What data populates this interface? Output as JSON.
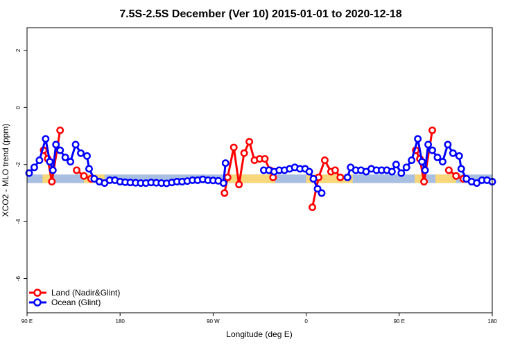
{
  "chart_data": {
    "type": "line",
    "title": "7.5S-2.5S December (Ver 10)   2015-01-01 to 2020-12-18",
    "xlabel": "Longitude (deg E)",
    "ylabel": "XCO2 - MLO trend (ppm)",
    "xlim": [
      0,
      450
    ],
    "ylim": [
      -7.2,
      2.8
    ],
    "x_ticks": [
      {
        "value": 0,
        "label": "90 E"
      },
      {
        "value": 90,
        "label": "180"
      },
      {
        "value": 180,
        "label": "90 W"
      },
      {
        "value": 270,
        "label": "0"
      },
      {
        "value": 360,
        "label": "90 E"
      },
      {
        "value": 450,
        "label": "180"
      }
    ],
    "y_ticks": [
      {
        "value": 2,
        "label": "2"
      },
      {
        "value": 0,
        "label": "0"
      },
      {
        "value": -2,
        "label": "-2"
      },
      {
        "value": -4,
        "label": "-4"
      },
      {
        "value": -6,
        "label": "-6"
      }
    ],
    "grid": false,
    "legend_position": "bottom-left",
    "band": {
      "y_min": -2.65,
      "y_max": -2.35,
      "ocean_color": "#a9bfe1",
      "land_color": "#f7d77a",
      "land_ranges": [
        [
          15,
          25
        ],
        [
          55,
          75
        ],
        [
          190,
          240
        ],
        [
          270,
          315
        ],
        [
          375,
          385
        ],
        [
          395,
          415
        ]
      ]
    },
    "series": [
      {
        "name": "Land (Nadir&Glint)",
        "color": "#ff0000",
        "segments": [
          [
            [
              16,
              -1.5
            ],
            [
              20,
              -1.8
            ],
            [
              24,
              -2.6
            ],
            [
              32,
              -0.8
            ]
          ],
          [
            [
              48,
              -2.2
            ],
            [
              55,
              -2.4
            ],
            [
              62,
              -2.5
            ]
          ],
          [
            [
              191,
              -3.0
            ],
            [
              194,
              -2.45
            ],
            [
              200,
              -1.4
            ],
            [
              205,
              -2.7
            ],
            [
              210,
              -1.6
            ],
            [
              215,
              -1.2
            ],
            [
              220,
              -1.85
            ],
            [
              225,
              -1.8
            ],
            [
              230,
              -1.8
            ],
            [
              235,
              -2.2
            ],
            [
              238,
              -2.45
            ]
          ],
          [
            [
              276,
              -3.5
            ],
            [
              282,
              -2.45
            ],
            [
              288,
              -1.85
            ],
            [
              294,
              -2.25
            ],
            [
              298,
              -2.2
            ],
            [
              303,
              -2.45
            ]
          ],
          [
            [
              376,
              -1.5
            ],
            [
              380,
              -1.8
            ],
            [
              384,
              -2.6
            ],
            [
              392,
              -0.8
            ]
          ],
          [
            [
              408,
              -2.2
            ],
            [
              415,
              -2.4
            ],
            [
              422,
              -2.5
            ]
          ]
        ]
      },
      {
        "name": "Ocean (Glint)",
        "color": "#0000ff",
        "segments": [
          [
            [
              2,
              -2.3
            ],
            [
              7,
              -2.1
            ],
            [
              12,
              -1.85
            ],
            [
              18,
              -1.1
            ],
            [
              22,
              -1.9
            ],
            [
              25,
              -2.2
            ],
            [
              28,
              -1.3
            ],
            [
              32,
              -1.5
            ],
            [
              37,
              -1.75
            ],
            [
              42,
              -1.9
            ],
            [
              47,
              -1.3
            ],
            [
              52,
              -1.6
            ],
            [
              58,
              -1.7
            ],
            [
              60,
              -2.15
            ],
            [
              65,
              -2.5
            ],
            [
              70,
              -2.6
            ],
            [
              75,
              -2.65
            ],
            [
              80,
              -2.55
            ],
            [
              85,
              -2.55
            ],
            [
              90,
              -2.6
            ],
            [
              95,
              -2.62
            ],
            [
              100,
              -2.63
            ],
            [
              105,
              -2.64
            ],
            [
              110,
              -2.65
            ],
            [
              115,
              -2.65
            ],
            [
              120,
              -2.63
            ],
            [
              125,
              -2.64
            ],
            [
              130,
              -2.65
            ],
            [
              135,
              -2.66
            ],
            [
              140,
              -2.63
            ],
            [
              145,
              -2.6
            ],
            [
              150,
              -2.6
            ],
            [
              155,
              -2.58
            ],
            [
              160,
              -2.55
            ],
            [
              165,
              -2.55
            ],
            [
              170,
              -2.52
            ],
            [
              175,
              -2.55
            ],
            [
              180,
              -2.56
            ],
            [
              185,
              -2.57
            ],
            [
              190,
              -2.65
            ],
            [
              192,
              -1.95
            ]
          ],
          [
            [
              229,
              -2.2
            ],
            [
              234,
              -2.2
            ],
            [
              239,
              -2.25
            ],
            [
              244,
              -2.2
            ],
            [
              249,
              -2.2
            ],
            [
              254,
              -2.15
            ],
            [
              259,
              -2.1
            ],
            [
              264,
              -2.15
            ],
            [
              269,
              -2.15
            ],
            [
              273,
              -2.25
            ],
            [
              277,
              -2.5
            ],
            [
              281,
              -2.85
            ],
            [
              285,
              -3.0
            ]
          ],
          [
            [
              310,
              -2.45
            ],
            [
              313,
              -2.1
            ],
            [
              318,
              -2.2
            ],
            [
              323,
              -2.2
            ],
            [
              328,
              -2.25
            ],
            [
              333,
              -2.15
            ],
            [
              338,
              -2.2
            ],
            [
              343,
              -2.2
            ],
            [
              348,
              -2.2
            ],
            [
              353,
              -2.25
            ],
            [
              357,
              -2.0
            ],
            [
              362,
              -2.3
            ],
            [
              367,
              -2.1
            ],
            [
              372,
              -1.85
            ],
            [
              378,
              -1.1
            ],
            [
              382,
              -1.9
            ],
            [
              385,
              -2.2
            ],
            [
              388,
              -1.3
            ],
            [
              392,
              -1.5
            ],
            [
              397,
              -1.75
            ],
            [
              402,
              -1.9
            ],
            [
              407,
              -1.3
            ],
            [
              412,
              -1.6
            ],
            [
              418,
              -1.7
            ],
            [
              420,
              -2.15
            ],
            [
              425,
              -2.5
            ],
            [
              430,
              -2.6
            ],
            [
              435,
              -2.65
            ],
            [
              440,
              -2.55
            ],
            [
              445,
              -2.55
            ],
            [
              450,
              -2.6
            ]
          ]
        ]
      }
    ]
  }
}
